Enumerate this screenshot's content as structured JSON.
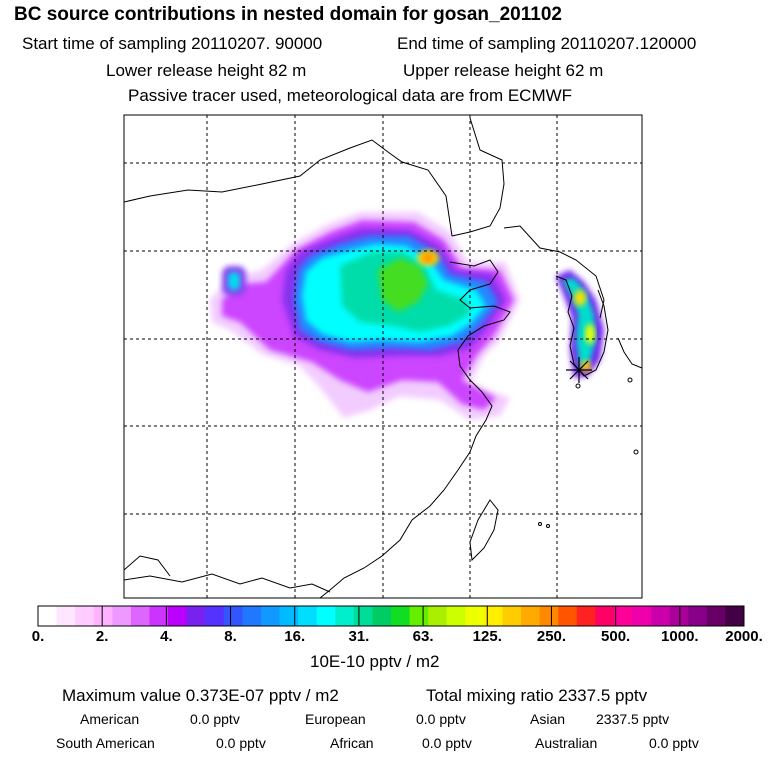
{
  "header": {
    "title": "BC  source contributions in nested domain for gosan_201102",
    "start_time": "Start time of sampling 20110207. 90000",
    "end_time": "End time of sampling 20110207.120000",
    "lower_height": "Lower release height   82 m",
    "upper_height": "Upper release height   62 m",
    "tracer_note": "Passive tracer used, meteorological data are from ECMWF"
  },
  "colorbar": {
    "tick_labels": [
      "0.",
      "2.",
      "4.",
      "8.",
      "16.",
      "31.",
      "63.",
      "125.",
      "250.",
      "500.",
      "1000.",
      "2000."
    ],
    "unit": "10E-10 pptv / m2",
    "colors": [
      "#ffffff",
      "#ffe6ff",
      "#ffccff",
      "#ffb3ff",
      "#ee99ff",
      "#dd66ff",
      "#cc33ff",
      "#bb00ff",
      "#7722ee",
      "#5533ff",
      "#3355ff",
      "#2277ff",
      "#1199ff",
      "#00bbff",
      "#00ddff",
      "#00ffff",
      "#00eecc",
      "#00dd99",
      "#00cc66",
      "#11dd22",
      "#66ee00",
      "#aaee00",
      "#ccff00",
      "#eeff00",
      "#ffee00",
      "#ffcc00",
      "#ffaa00",
      "#ff8800",
      "#ff5500",
      "#ff2222",
      "#ff0066",
      "#ff0099",
      "#ee00aa",
      "#cc00aa",
      "#aa0099",
      "#880088",
      "#660066",
      "#440044"
    ]
  },
  "summary": {
    "max_value": "Maximum value  0.373E-07 pptv / m2",
    "total": "Total mixing ratio      2337.5 pptv"
  },
  "regions": [
    {
      "name": "American",
      "value": "0.0 pptv"
    },
    {
      "name": "European",
      "value": "0.0 pptv"
    },
    {
      "name": "Asian",
      "value": "2337.5 pptv"
    },
    {
      "name": "South American",
      "value": "0.0 pptv"
    },
    {
      "name": "African",
      "value": "0.0 pptv"
    },
    {
      "name": "Australian",
      "value": "0.0 pptv"
    }
  ]
}
